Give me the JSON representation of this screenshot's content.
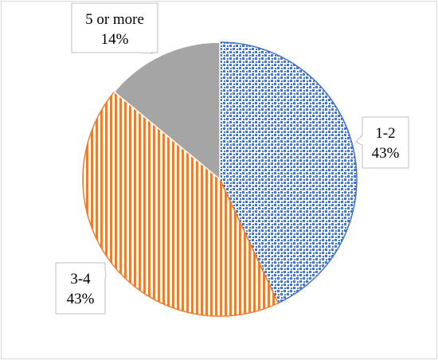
{
  "chart_data": {
    "type": "pie",
    "title": "",
    "slices": [
      {
        "label": "1-2",
        "value": 43,
        "value_label": "43%",
        "color": "#4472c4",
        "pattern": "dotted-squares"
      },
      {
        "label": "3-4",
        "value": 43,
        "value_label": "43%",
        "color": "#ed7d31",
        "pattern": "vertical-stripes"
      },
      {
        "label": "5 or more",
        "value": 14,
        "value_label": "14%",
        "color": "#a5a5a5",
        "pattern": "solid"
      }
    ],
    "start_angle_deg": 0,
    "direction": "clockwise",
    "legend": "none",
    "data_labels": "callouts"
  }
}
